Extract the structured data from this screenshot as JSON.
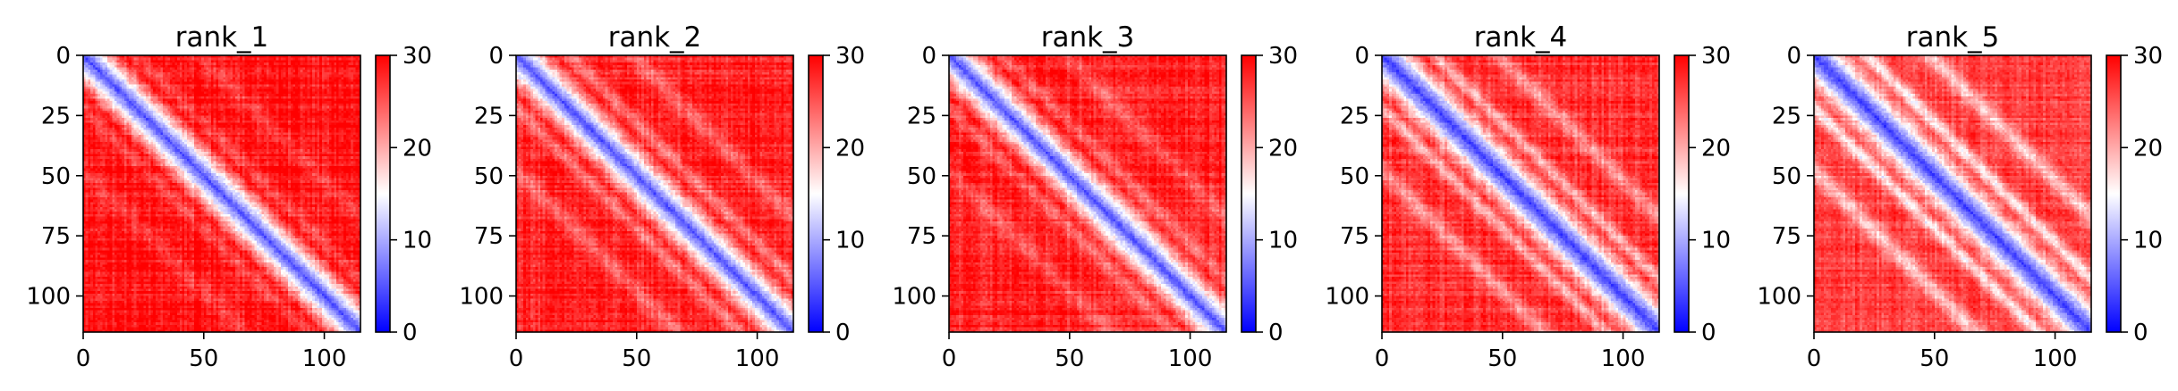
{
  "chart_data": [
    {
      "type": "heatmap",
      "title": "rank_1",
      "matrix_size": 115,
      "xlim": [
        0,
        115
      ],
      "ylim": [
        115,
        0
      ],
      "x_ticks": [
        0,
        50,
        100
      ],
      "y_ticks": [
        0,
        25,
        50,
        75,
        100
      ],
      "colorbar": {
        "range": [
          0,
          30
        ],
        "ticks": [
          0,
          10,
          20,
          30
        ],
        "colormap": "bwr"
      },
      "pattern": {
        "diagonal_value": 3,
        "near_diagonal_width": 6,
        "off_diagonal_value": 29,
        "light_bands": 0.15
      }
    },
    {
      "type": "heatmap",
      "title": "rank_2",
      "matrix_size": 115,
      "xlim": [
        0,
        115
      ],
      "ylim": [
        115,
        0
      ],
      "x_ticks": [
        0,
        50,
        100
      ],
      "y_ticks": [
        0,
        25,
        50,
        75,
        100
      ],
      "colorbar": {
        "range": [
          0,
          30
        ],
        "ticks": [
          0,
          10,
          20,
          30
        ],
        "colormap": "bwr"
      },
      "pattern": {
        "diagonal_value": 3,
        "near_diagonal_width": 6,
        "off_diagonal_value": 28,
        "light_bands": 0.25
      }
    },
    {
      "type": "heatmap",
      "title": "rank_3",
      "matrix_size": 115,
      "xlim": [
        0,
        115
      ],
      "ylim": [
        115,
        0
      ],
      "x_ticks": [
        0,
        50,
        100
      ],
      "y_ticks": [
        0,
        25,
        50,
        75,
        100
      ],
      "colorbar": {
        "range": [
          0,
          30
        ],
        "ticks": [
          0,
          10,
          20,
          30
        ],
        "colormap": "bwr"
      },
      "pattern": {
        "diagonal_value": 3,
        "near_diagonal_width": 6,
        "off_diagonal_value": 28,
        "light_bands": 0.2
      }
    },
    {
      "type": "heatmap",
      "title": "rank_4",
      "matrix_size": 115,
      "xlim": [
        0,
        115
      ],
      "ylim": [
        115,
        0
      ],
      "x_ticks": [
        0,
        50,
        100
      ],
      "y_ticks": [
        0,
        25,
        50,
        75,
        100
      ],
      "colorbar": {
        "range": [
          0,
          30
        ],
        "ticks": [
          0,
          10,
          20,
          30
        ],
        "colormap": "bwr"
      },
      "pattern": {
        "diagonal_value": 2,
        "near_diagonal_width": 7,
        "off_diagonal_value": 27,
        "light_bands": 0.35
      }
    },
    {
      "type": "heatmap",
      "title": "rank_5",
      "matrix_size": 115,
      "xlim": [
        0,
        115
      ],
      "ylim": [
        115,
        0
      ],
      "x_ticks": [
        0,
        50,
        100
      ],
      "y_ticks": [
        0,
        25,
        50,
        75,
        100
      ],
      "colorbar": {
        "range": [
          0,
          30
        ],
        "ticks": [
          0,
          10,
          20,
          30
        ],
        "colormap": "bwr"
      },
      "pattern": {
        "diagonal_value": 2,
        "near_diagonal_width": 7,
        "off_diagonal_value": 26,
        "light_bands": 0.45
      }
    }
  ],
  "colors": {
    "low": "#0000ff",
    "mid": "#ffffff",
    "high": "#ff0000"
  }
}
